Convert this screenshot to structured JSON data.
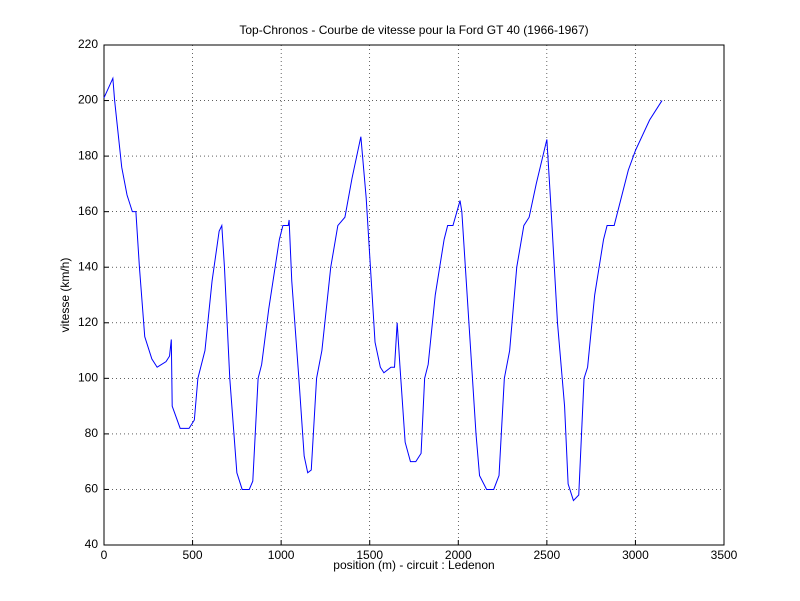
{
  "chart_data": {
    "type": "line",
    "title": "Top-Chronos - Courbe de vitesse pour la Ford GT 40 (1966-1967)",
    "x_label": "position (m) - circuit : Ledenon",
    "y_label": "vitesse (km/h)",
    "x": [
      0,
      50,
      60,
      100,
      130,
      160,
      180,
      200,
      230,
      270,
      300,
      350,
      370,
      380,
      385,
      430,
      480,
      510,
      530,
      570,
      610,
      650,
      665,
      680,
      710,
      750,
      780,
      820,
      840,
      870,
      890,
      930,
      990,
      1010,
      1040,
      1045,
      1060,
      1100,
      1130,
      1150,
      1170,
      1200,
      1230,
      1280,
      1320,
      1360,
      1400,
      1450,
      1480,
      1530,
      1560,
      1580,
      1620,
      1640,
      1655,
      1670,
      1700,
      1730,
      1760,
      1790,
      1810,
      1830,
      1870,
      1920,
      1940,
      1970,
      2010,
      2020,
      2060,
      2100,
      2120,
      2160,
      2200,
      2230,
      2260,
      2290,
      2330,
      2370,
      2400,
      2440,
      2500,
      2520,
      2560,
      2600,
      2620,
      2650,
      2680,
      2710,
      2730,
      2770,
      2820,
      2840,
      2880,
      2900,
      2960,
      3000,
      3080,
      3150
    ],
    "values": [
      201,
      208,
      200,
      176,
      166,
      160,
      160,
      140,
      115,
      107,
      104,
      106,
      108,
      114,
      90,
      82,
      82,
      85,
      100,
      110,
      135,
      153,
      155,
      140,
      100,
      66,
      60,
      60,
      63,
      100,
      105,
      125,
      150,
      155,
      155,
      157,
      135,
      100,
      72,
      66,
      67,
      100,
      110,
      140,
      155,
      158,
      172,
      187,
      165,
      113,
      104,
      102,
      104,
      104,
      120,
      105,
      77,
      70,
      70,
      73,
      100,
      105,
      130,
      150,
      155,
      155,
      164,
      160,
      120,
      80,
      65,
      60,
      60,
      65,
      100,
      110,
      140,
      155,
      158,
      170,
      186,
      165,
      120,
      90,
      62,
      56,
      58,
      100,
      104,
      130,
      150,
      155,
      155,
      160,
      175,
      182,
      193,
      200
    ],
    "color": "#0000ff",
    "xlim": [
      0,
      3500
    ],
    "xticks": [
      0,
      500,
      1000,
      1500,
      2000,
      2500,
      3000,
      3500
    ],
    "ylim": [
      40,
      220
    ],
    "yticks": [
      40,
      60,
      80,
      100,
      120,
      140,
      160,
      180,
      200,
      220
    ],
    "grid": true
  }
}
